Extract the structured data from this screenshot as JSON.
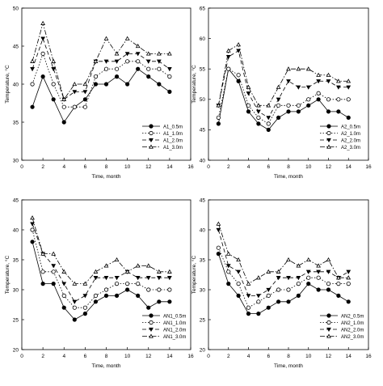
{
  "chart_data": [
    {
      "type": "line",
      "title": "",
      "xlabel": "Time, month",
      "ylabel": "Temperature, °C",
      "xlim": [
        0,
        16
      ],
      "ylim": [
        30,
        50
      ],
      "x_ticks": [
        0,
        2,
        4,
        6,
        8,
        10,
        12,
        14,
        16
      ],
      "y_ticks": [
        30,
        35,
        40,
        45,
        50
      ],
      "grid": false,
      "legend_position": "bottom-right",
      "x": [
        1,
        2,
        3,
        4,
        5,
        6,
        7,
        8,
        9,
        10,
        11,
        12,
        13,
        14
      ],
      "series": [
        {
          "name": "A1_0.5m",
          "marker": "filled-circle",
          "line": "solid",
          "values": [
            37,
            41,
            38,
            35,
            37,
            38,
            40,
            40,
            41,
            40,
            42,
            41,
            40,
            39
          ]
        },
        {
          "name": "A1_1.0m",
          "marker": "open-circle",
          "line": "dotted",
          "values": [
            40,
            44,
            40,
            37,
            37,
            37,
            41,
            42,
            42,
            43,
            43,
            42,
            42,
            41
          ]
        },
        {
          "name": "A1_2.0m",
          "marker": "filled-triangle-down",
          "line": "dashed",
          "values": [
            42,
            46,
            42,
            38,
            39,
            39,
            43,
            43,
            43,
            44,
            44,
            43,
            43,
            42
          ]
        },
        {
          "name": "A1_3.0m",
          "marker": "open-triangle-up",
          "line": "dash-dot",
          "values": [
            43,
            48,
            43,
            38,
            40,
            40,
            43,
            46,
            44,
            46,
            45,
            44,
            44,
            44
          ]
        }
      ]
    },
    {
      "type": "line",
      "title": "",
      "xlabel": "Time, month",
      "ylabel": "Temperature, °C",
      "xlim": [
        0,
        16
      ],
      "ylim": [
        40,
        65
      ],
      "x_ticks": [
        0,
        2,
        4,
        6,
        8,
        10,
        12,
        14,
        16
      ],
      "y_ticks": [
        40,
        45,
        50,
        55,
        60,
        65
      ],
      "grid": false,
      "legend_position": "bottom-right",
      "x": [
        1,
        2,
        3,
        4,
        5,
        6,
        7,
        8,
        9,
        10,
        11,
        12,
        13,
        14
      ],
      "series": [
        {
          "name": "A2_0.5m",
          "marker": "filled-circle",
          "line": "solid",
          "values": [
            46,
            55,
            53,
            48,
            46,
            45,
            47,
            48,
            48,
            49,
            50,
            48,
            48,
            47
          ]
        },
        {
          "name": "A2_1.0m",
          "marker": "open-circle",
          "line": "dotted",
          "values": [
            47,
            55,
            54,
            49,
            47,
            46,
            49,
            49,
            49,
            50,
            51,
            50,
            50,
            50
          ]
        },
        {
          "name": "A2_2.0m",
          "marker": "filled-triangle-down",
          "line": "dashed",
          "values": [
            49,
            57,
            58,
            51,
            48,
            47,
            50,
            53,
            52,
            52,
            53,
            53,
            52,
            52
          ]
        },
        {
          "name": "A2_3.0m",
          "marker": "open-triangle-up",
          "line": "dash-dot",
          "values": [
            49,
            58,
            59,
            52,
            49,
            49,
            52,
            55,
            55,
            55,
            54,
            54,
            53,
            53
          ]
        }
      ]
    },
    {
      "type": "line",
      "title": "",
      "xlabel": "Time, month",
      "ylabel": "Temperature, °C",
      "xlim": [
        0,
        16
      ],
      "ylim": [
        20,
        45
      ],
      "x_ticks": [
        0,
        2,
        4,
        6,
        8,
        10,
        12,
        14,
        16
      ],
      "y_ticks": [
        20,
        25,
        30,
        35,
        40,
        45
      ],
      "grid": false,
      "legend_position": "bottom-right",
      "x": [
        1,
        2,
        3,
        4,
        5,
        6,
        7,
        8,
        9,
        10,
        11,
        12,
        13,
        14
      ],
      "series": [
        {
          "name": "AN1_0.5m",
          "marker": "filled-circle",
          "line": "solid",
          "values": [
            38,
            31,
            31,
            27,
            25,
            26,
            28,
            29,
            29,
            30,
            29,
            27,
            28,
            28
          ]
        },
        {
          "name": "AN1_1.0m",
          "marker": "open-circle",
          "line": "dotted",
          "values": [
            40,
            33,
            33,
            29,
            27,
            27,
            29,
            30,
            31,
            31,
            31,
            30,
            30,
            30
          ]
        },
        {
          "name": "AN1_2.0m",
          "marker": "filled-triangle-down",
          "line": "dashed",
          "values": [
            41,
            36,
            34,
            31,
            28,
            29,
            32,
            32,
            32,
            33,
            32,
            32,
            32,
            32
          ]
        },
        {
          "name": "AN1_3.0m",
          "marker": "open-triangle-up",
          "line": "dash-dot",
          "values": [
            42,
            36,
            36,
            33,
            31,
            31,
            33,
            34,
            35,
            33,
            34,
            34,
            33,
            33
          ]
        }
      ]
    },
    {
      "type": "line",
      "title": "",
      "xlabel": "Time, month",
      "ylabel": "Temperature, °C",
      "xlim": [
        0,
        16
      ],
      "ylim": [
        20,
        45
      ],
      "x_ticks": [
        0,
        2,
        4,
        6,
        8,
        10,
        12,
        14,
        16
      ],
      "y_ticks": [
        20,
        25,
        30,
        35,
        40,
        45
      ],
      "grid": false,
      "legend_position": "bottom-right",
      "x": [
        1,
        2,
        3,
        4,
        5,
        6,
        7,
        8,
        9,
        10,
        11,
        12,
        13,
        14
      ],
      "series": [
        {
          "name": "AN2_0.5m",
          "marker": "filled-circle",
          "line": "solid",
          "values": [
            36,
            31,
            29,
            26,
            26,
            27,
            28,
            28,
            29,
            31,
            30,
            30,
            29,
            28
          ]
        },
        {
          "name": "AN2_1.0m",
          "marker": "open-circle",
          "line": "dotted",
          "values": [
            37,
            33,
            31,
            27,
            28,
            29,
            30,
            30,
            31,
            32,
            32,
            31,
            31,
            31
          ]
        },
        {
          "name": "AN2_2.0m",
          "marker": "filled-triangle-down",
          "line": "dashed",
          "values": [
            40,
            34,
            33,
            29,
            29,
            30,
            32,
            32,
            32,
            33,
            33,
            33,
            32,
            33
          ]
        },
        {
          "name": "AN2_3.0m",
          "marker": "open-triangle-up",
          "line": "dash-dot",
          "values": [
            41,
            36,
            35,
            31,
            32,
            33,
            33,
            35,
            34,
            35,
            34,
            35,
            32,
            32
          ]
        }
      ]
    }
  ]
}
